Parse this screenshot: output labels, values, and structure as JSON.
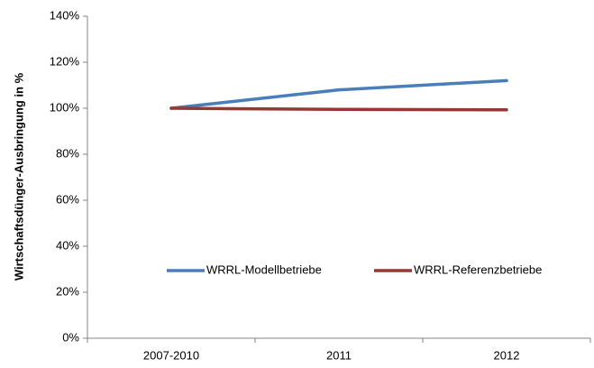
{
  "chart_data": {
    "type": "line",
    "y_label": "Wirtschaftsdünger-Ausbringung in %",
    "categories": [
      "2007-2010",
      "2011",
      "2012"
    ],
    "series": [
      {
        "name": "WRRL-Modellbetriebe",
        "color": "#4a7ebb",
        "values": [
          100,
          108,
          112
        ]
      },
      {
        "name": "WRRL-Referenzbetriebe",
        "color": "#953735",
        "values": [
          100,
          99.5,
          99.3
        ]
      }
    ],
    "ylim": [
      0,
      140
    ],
    "yticks": [
      {
        "value": 0,
        "label": "0%"
      },
      {
        "value": 20,
        "label": "20%"
      },
      {
        "value": 40,
        "label": "40%"
      },
      {
        "value": 60,
        "label": "60%"
      },
      {
        "value": 80,
        "label": "80%"
      },
      {
        "value": 100,
        "label": "100%"
      },
      {
        "value": 120,
        "label": "120%"
      },
      {
        "value": 140,
        "label": "140%"
      }
    ],
    "grid": false,
    "legend_position": "bottom"
  }
}
